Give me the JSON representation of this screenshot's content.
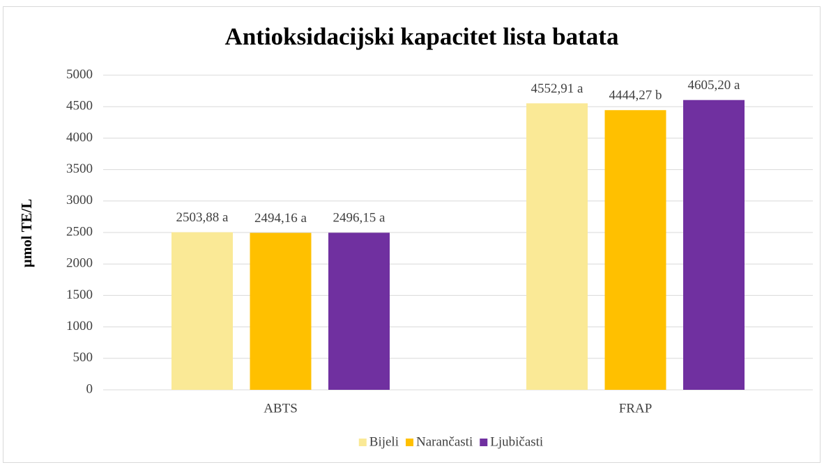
{
  "chart_data": {
    "type": "bar",
    "title": "Antioksidacijski kapacitet lista batata",
    "ylabel": "µmol TE/L",
    "categories": [
      "ABTS",
      "FRAP"
    ],
    "series": [
      {
        "name": "Bijeli",
        "color": "#FAE996",
        "values": [
          2503.88,
          4552.91
        ],
        "value_labels": [
          "2503,88 a",
          "4552,91 a"
        ]
      },
      {
        "name": "Narančasti",
        "color": "#FFC000",
        "values": [
          2494.16,
          4444.27
        ],
        "value_labels": [
          "2494,16 a",
          "4444,27 b"
        ]
      },
      {
        "name": "Ljubičasti",
        "color": "#7030A0",
        "values": [
          2496.15,
          4605.2
        ],
        "value_labels": [
          "2496,15 a",
          "4605,20 a"
        ]
      }
    ],
    "ylim": [
      0,
      5000
    ],
    "yticks": [
      0,
      500,
      1000,
      1500,
      2000,
      2500,
      3000,
      3500,
      4000,
      4500,
      5000
    ],
    "grid": true,
    "legend": "bottom"
  }
}
